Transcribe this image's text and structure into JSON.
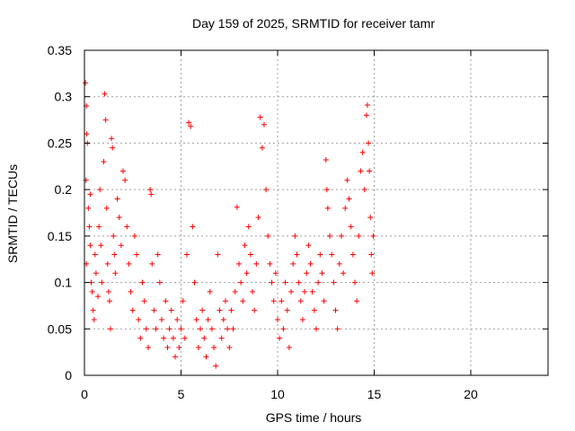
{
  "chart_data": {
    "type": "scatter",
    "title": "Day 159 of 2025, SRMTID for receiver tamr",
    "xlabel": "GPS time / hours",
    "ylabel": "SRMTID / TECUs",
    "xlim": [
      0,
      24
    ],
    "ylim": [
      0,
      0.35
    ],
    "xticks": [
      0,
      5,
      10,
      15,
      20
    ],
    "yticks": [
      0,
      0.05,
      0.1,
      0.15,
      0.2,
      0.25,
      0.3,
      0.35
    ],
    "grid": true,
    "marker": "+",
    "marker_color": "#ff0000",
    "series": [
      {
        "name": "SRMTID",
        "points": [
          [
            0.05,
            0.315
          ],
          [
            0.1,
            0.29
          ],
          [
            0.12,
            0.26
          ],
          [
            0.15,
            0.25
          ],
          [
            0.08,
            0.21
          ],
          [
            0.2,
            0.18
          ],
          [
            0.25,
            0.16
          ],
          [
            0.3,
            0.14
          ],
          [
            0.1,
            0.12
          ],
          [
            0.35,
            0.1
          ],
          [
            0.4,
            0.09
          ],
          [
            0.45,
            0.07
          ],
          [
            0.5,
            0.06
          ],
          [
            0.3,
            0.195
          ],
          [
            0.55,
            0.13
          ],
          [
            0.6,
            0.11
          ],
          [
            0.7,
            0.085
          ],
          [
            0.75,
            0.16
          ],
          [
            0.8,
            0.2
          ],
          [
            0.85,
            0.14
          ],
          [
            0.9,
            0.1
          ],
          [
            1.0,
            0.23
          ],
          [
            1.05,
            0.303
          ],
          [
            1.1,
            0.275
          ],
          [
            1.15,
            0.18
          ],
          [
            1.2,
            0.12
          ],
          [
            1.25,
            0.09
          ],
          [
            1.3,
            0.08
          ],
          [
            1.35,
            0.05
          ],
          [
            1.4,
            0.255
          ],
          [
            1.45,
            0.245
          ],
          [
            1.5,
            0.15
          ],
          [
            1.55,
            0.13
          ],
          [
            1.6,
            0.11
          ],
          [
            1.7,
            0.19
          ],
          [
            1.8,
            0.17
          ],
          [
            1.9,
            0.14
          ],
          [
            2.0,
            0.22
          ],
          [
            2.1,
            0.21
          ],
          [
            2.2,
            0.16
          ],
          [
            2.3,
            0.12
          ],
          [
            2.4,
            0.09
          ],
          [
            2.5,
            0.07
          ],
          [
            2.6,
            0.15
          ],
          [
            2.7,
            0.13
          ],
          [
            2.8,
            0.06
          ],
          [
            2.9,
            0.04
          ],
          [
            3.0,
            0.1
          ],
          [
            3.1,
            0.08
          ],
          [
            3.2,
            0.05
          ],
          [
            3.3,
            0.03
          ],
          [
            3.4,
            0.2
          ],
          [
            3.45,
            0.195
          ],
          [
            3.5,
            0.12
          ],
          [
            3.6,
            0.07
          ],
          [
            3.7,
            0.05
          ],
          [
            3.8,
            0.13
          ],
          [
            3.9,
            0.1
          ],
          [
            4.0,
            0.06
          ],
          [
            4.1,
            0.04
          ],
          [
            4.2,
            0.08
          ],
          [
            4.3,
            0.03
          ],
          [
            4.4,
            0.05
          ],
          [
            4.5,
            0.07
          ],
          [
            4.6,
            0.04
          ],
          [
            4.7,
            0.02
          ],
          [
            4.8,
            0.06
          ],
          [
            4.9,
            0.03
          ],
          [
            5.0,
            0.05
          ],
          [
            5.1,
            0.08
          ],
          [
            5.2,
            0.04
          ],
          [
            5.3,
            0.13
          ],
          [
            5.4,
            0.272
          ],
          [
            5.5,
            0.268
          ],
          [
            5.6,
            0.16
          ],
          [
            5.7,
            0.1
          ],
          [
            5.8,
            0.06
          ],
          [
            5.9,
            0.03
          ],
          [
            6.0,
            0.05
          ],
          [
            6.1,
            0.07
          ],
          [
            6.2,
            0.04
          ],
          [
            6.3,
            0.02
          ],
          [
            6.4,
            0.06
          ],
          [
            6.5,
            0.09
          ],
          [
            6.6,
            0.05
          ],
          [
            6.7,
            0.03
          ],
          [
            6.8,
            0.01
          ],
          [
            6.9,
            0.13
          ],
          [
            7.0,
            0.07
          ],
          [
            7.1,
            0.04
          ],
          [
            7.2,
            0.06
          ],
          [
            7.3,
            0.08
          ],
          [
            7.4,
            0.05
          ],
          [
            7.5,
            0.03
          ],
          [
            7.6,
            0.07
          ],
          [
            7.7,
            0.05
          ],
          [
            7.8,
            0.09
          ],
          [
            7.9,
            0.181
          ],
          [
            8.0,
            0.12
          ],
          [
            8.1,
            0.1
          ],
          [
            8.2,
            0.08
          ],
          [
            8.3,
            0.14
          ],
          [
            8.4,
            0.11
          ],
          [
            8.5,
            0.16
          ],
          [
            8.6,
            0.13
          ],
          [
            8.7,
            0.09
          ],
          [
            8.8,
            0.07
          ],
          [
            8.9,
            0.12
          ],
          [
            9.0,
            0.17
          ],
          [
            9.1,
            0.278
          ],
          [
            9.2,
            0.245
          ],
          [
            9.3,
            0.27
          ],
          [
            9.4,
            0.2
          ],
          [
            9.5,
            0.15
          ],
          [
            9.6,
            0.12
          ],
          [
            9.7,
            0.1
          ],
          [
            9.8,
            0.08
          ],
          [
            9.9,
            0.11
          ],
          [
            10.0,
            0.06
          ],
          [
            10.1,
            0.04
          ],
          [
            10.2,
            0.08
          ],
          [
            10.3,
            0.05
          ],
          [
            10.4,
            0.1
          ],
          [
            10.5,
            0.07
          ],
          [
            10.6,
            0.03
          ],
          [
            10.7,
            0.09
          ],
          [
            10.8,
            0.12
          ],
          [
            10.9,
            0.15
          ],
          [
            11.0,
            0.13
          ],
          [
            11.1,
            0.1
          ],
          [
            11.2,
            0.08
          ],
          [
            11.3,
            0.06
          ],
          [
            11.4,
            0.09
          ],
          [
            11.5,
            0.11
          ],
          [
            11.6,
            0.14
          ],
          [
            11.7,
            0.12
          ],
          [
            11.8,
            0.09
          ],
          [
            11.9,
            0.07
          ],
          [
            12.0,
            0.05
          ],
          [
            12.1,
            0.1
          ],
          [
            12.2,
            0.13
          ],
          [
            12.3,
            0.11
          ],
          [
            12.4,
            0.08
          ],
          [
            12.5,
            0.232
          ],
          [
            12.55,
            0.2
          ],
          [
            12.6,
            0.18
          ],
          [
            12.7,
            0.15
          ],
          [
            12.8,
            0.13
          ],
          [
            12.9,
            0.1
          ],
          [
            13.0,
            0.07
          ],
          [
            13.1,
            0.05
          ],
          [
            13.2,
            0.12
          ],
          [
            13.3,
            0.15
          ],
          [
            13.4,
            0.11
          ],
          [
            13.5,
            0.18
          ],
          [
            13.6,
            0.21
          ],
          [
            13.7,
            0.19
          ],
          [
            13.8,
            0.16
          ],
          [
            13.9,
            0.13
          ],
          [
            14.0,
            0.1
          ],
          [
            14.1,
            0.08
          ],
          [
            14.2,
            0.15
          ],
          [
            14.3,
            0.22
          ],
          [
            14.4,
            0.24
          ],
          [
            14.5,
            0.2
          ],
          [
            14.6,
            0.28
          ],
          [
            14.65,
            0.291
          ],
          [
            14.7,
            0.25
          ],
          [
            14.75,
            0.22
          ],
          [
            14.8,
            0.17
          ],
          [
            14.85,
            0.13
          ],
          [
            14.9,
            0.11
          ],
          [
            14.95,
            0.15
          ]
        ]
      }
    ]
  }
}
